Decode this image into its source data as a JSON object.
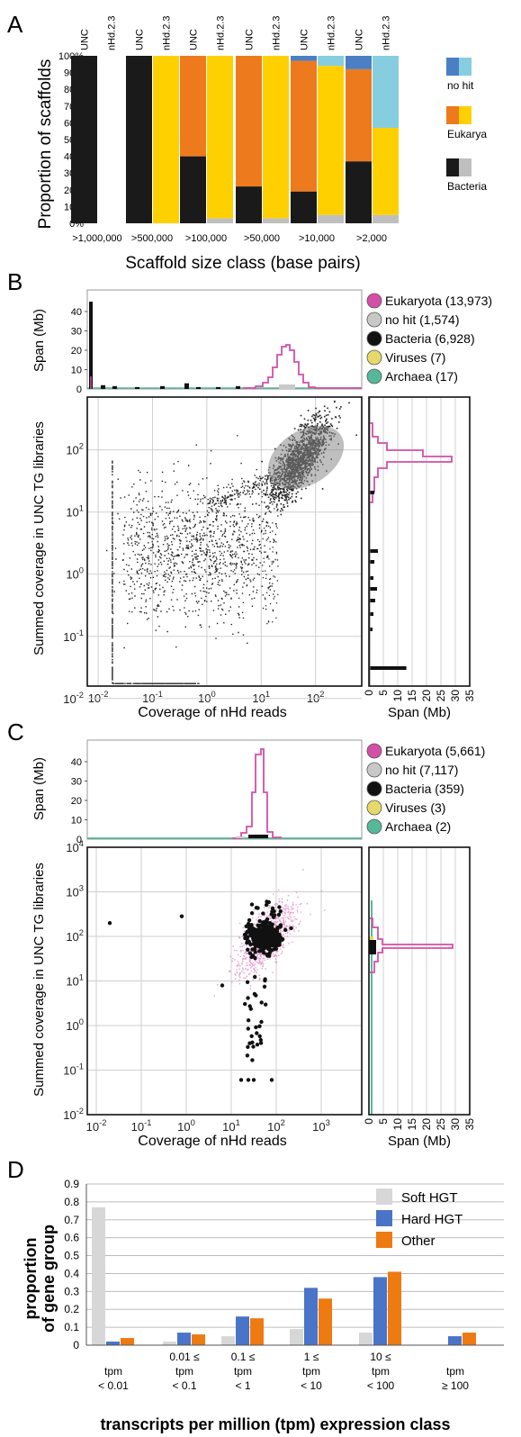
{
  "colors": {
    "unc_bacteria": "#1a1a1a",
    "nhd_bacteria": "#bfbfbf",
    "unc_eukarya": "#ee7a1e",
    "nhd_eukarya": "#ffd000",
    "unc_nohit": "#4a7fc4",
    "nhd_nohit": "#86cde0",
    "eukaryota": "#d44fa8",
    "nohit": "#c0c0c0",
    "bacteria": "#111111",
    "viruses": "#e6d96a",
    "archaea": "#56b89a",
    "soft_hgt": "#d7d7d7",
    "hard_hgt": "#4a74c7",
    "other": "#ee7a12"
  },
  "panelA": {
    "letter": "A",
    "ylabel": "Proportion of scaffolds",
    "xlabel": "Scaffold size class (base pairs)",
    "yticks": [
      "0%",
      "10%",
      "20%",
      "30%",
      "40%",
      "50%",
      "60%",
      "70%",
      "80%",
      "90%",
      "100%"
    ],
    "legend": [
      {
        "label": "no hit",
        "unc": "#4a7fc4",
        "nhd": "#86cde0"
      },
      {
        "label": "Eukarya",
        "unc": "#ee7a1e",
        "nhd": "#ffd000"
      },
      {
        "label": "Bacteria",
        "unc": "#1a1a1a",
        "nhd": "#bfbfbf"
      }
    ],
    "chart_data": {
      "type": "bar",
      "stacked": true,
      "categories": [
        ">1,000,000",
        ">500,000",
        ">100,000",
        ">50,000",
        ">10,000",
        ">2,000"
      ],
      "bar_labels": [
        "UNC",
        "nHd.2.3"
      ],
      "series": [
        {
          "assembly": "UNC",
          "bacteria": [
            100,
            100,
            40,
            22,
            19,
            37
          ],
          "eukarya": [
            0,
            0,
            60,
            78,
            78,
            55
          ],
          "nohit": [
            0,
            0,
            0,
            0,
            3,
            8
          ]
        },
        {
          "assembly": "nHd.2.3",
          "bacteria": [
            null,
            0,
            3,
            3,
            5,
            5
          ],
          "eukarya": [
            null,
            100,
            97,
            97,
            89,
            52
          ],
          "nohit": [
            null,
            0,
            0,
            0,
            6,
            43
          ]
        }
      ],
      "ylim": [
        0,
        100
      ]
    }
  },
  "panelB": {
    "letter": "B",
    "hist_ylabel": "Span (Mb)",
    "hist_yticks": [
      "0",
      "10",
      "20",
      "30",
      "40"
    ],
    "scatter_ylabel": "Summed coverage in UNC TG libraries",
    "scatter_xlabel": "Coverage of nHd reads",
    "side_xlabel": "Span (Mb)",
    "side_xticks": [
      "0",
      "5",
      "10",
      "15",
      "20",
      "25",
      "30",
      "35"
    ],
    "legend": [
      {
        "label": "Eukaryota (13,973)",
        "color": "#d44fa8"
      },
      {
        "label": "no hit (1,574)",
        "color": "#c8c8c8"
      },
      {
        "label": "Bacteria (6,928)",
        "color": "#111111"
      },
      {
        "label": "Viruses (7)",
        "color": "#e6d96a"
      },
      {
        "label": "Archaea (17)",
        "color": "#56b89a"
      }
    ],
    "x_ticks": [
      {
        "base": "10",
        "exp": "-2"
      },
      {
        "base": "10",
        "exp": "-1"
      },
      {
        "base": "10",
        "exp": "0"
      },
      {
        "base": "10",
        "exp": "1"
      },
      {
        "base": "10",
        "exp": "2"
      }
    ],
    "y_ticks": [
      {
        "base": "10",
        "exp": "-2"
      },
      {
        "base": "10",
        "exp": "-1"
      },
      {
        "base": "10",
        "exp": "0"
      },
      {
        "base": "10",
        "exp": "1"
      },
      {
        "base": "10",
        "exp": "2"
      }
    ],
    "chart_data": {
      "type": "scatter",
      "x_scale": "log",
      "y_scale": "log",
      "xlim": [
        0.01,
        700
      ],
      "ylim": [
        0.01,
        700
      ],
      "top_hist": {
        "type": "histogram",
        "bins_log_x": [
          -1.8,
          -1.0,
          0.0,
          0.6,
          1.0,
          1.4,
          1.7,
          2.0
        ],
        "eukaryota_peak": {
          "x": 50,
          "span_mb": 19
        },
        "bacteria_peak": {
          "x": 0.018,
          "span_mb": 45
        }
      },
      "side_hist": {
        "eukaryota_peak": {
          "y": 70,
          "span_mb": 32
        },
        "bacteria_bar": {
          "y": 0.02,
          "span_mb": 13
        }
      },
      "clusters": [
        {
          "name": "eukaryota",
          "x_center": 50,
          "y_center": 60
        },
        {
          "name": "bacteria",
          "x_center": 0.05,
          "y_center": 3
        }
      ]
    }
  },
  "panelC": {
    "letter": "C",
    "hist_ylabel": "Span (Mb)",
    "hist_yticks": [
      "0",
      "10",
      "20",
      "30",
      "40"
    ],
    "scatter_ylabel": "Summed coverage in UNC TG libraries",
    "scatter_xlabel": "Coverage of nHd reads",
    "side_xlabel": "Span (Mb)",
    "side_xticks": [
      "0",
      "5",
      "10",
      "15",
      "20",
      "25",
      "30",
      "35"
    ],
    "legend": [
      {
        "label": "Eukaryota (5,661)",
        "color": "#d44fa8"
      },
      {
        "label": "no hit (7,117)",
        "color": "#c8c8c8"
      },
      {
        "label": "Bacteria (359)",
        "color": "#111111"
      },
      {
        "label": "Viruses (3)",
        "color": "#e6d96a"
      },
      {
        "label": "Archaea (2)",
        "color": "#56b89a"
      }
    ],
    "x_ticks": [
      {
        "base": "10",
        "exp": "-2"
      },
      {
        "base": "10",
        "exp": "-1"
      },
      {
        "base": "10",
        "exp": "0"
      },
      {
        "base": "10",
        "exp": "1"
      },
      {
        "base": "10",
        "exp": "2"
      },
      {
        "base": "10",
        "exp": "3"
      }
    ],
    "y_ticks": [
      {
        "base": "10",
        "exp": "-2"
      },
      {
        "base": "10",
        "exp": "-1"
      },
      {
        "base": "10",
        "exp": "0"
      },
      {
        "base": "10",
        "exp": "1"
      },
      {
        "base": "10",
        "exp": "2"
      },
      {
        "base": "10",
        "exp": "3"
      },
      {
        "base": "10",
        "exp": "4"
      }
    ],
    "chart_data": {
      "type": "scatter",
      "x_scale": "log",
      "y_scale": "log",
      "xlim": [
        0.01,
        8000
      ],
      "ylim": [
        0.01,
        10000
      ],
      "top_hist": {
        "eukaryota_peak": {
          "x": 75,
          "span_mb": 41
        }
      },
      "side_hist": {
        "eukaryota_peak": {
          "y": 100,
          "span_mb": 31
        }
      },
      "clusters": [
        {
          "name": "bacteria",
          "x_center": 60,
          "y_center": 100
        }
      ]
    }
  },
  "panelD": {
    "letter": "D",
    "ylabel_lines": [
      "proportion",
      "of gene group"
    ],
    "xlabel": "transcripts per million (tpm) expression class",
    "yticks": [
      "0",
      "0.1",
      "0.2",
      "0.3",
      "0.4",
      "0.5",
      "0.6",
      "0.7",
      "0.8",
      "0.9"
    ],
    "legend": [
      {
        "label": "Soft HGT",
        "color": "#d7d7d7"
      },
      {
        "label": "Hard HGT",
        "color": "#4a74c7"
      },
      {
        "label": "Other",
        "color": "#ee7a12"
      }
    ],
    "category_lines": [
      [
        "tpm",
        "< 0.01"
      ],
      [
        "0.01 ≤",
        "tpm",
        "< 0.1"
      ],
      [
        "0.1 ≤",
        "tpm",
        "< 1"
      ],
      [
        "1 ≤",
        "tpm",
        "< 10"
      ],
      [
        "10 ≤",
        "tpm",
        "< 100"
      ],
      [
        "tpm",
        "≥ 100"
      ]
    ],
    "chart_data": {
      "type": "bar",
      "categories": [
        "tpm < 0.01",
        "0.01 ≤ tpm < 0.1",
        "0.1 ≤ tpm < 1",
        "1 ≤ tpm < 10",
        "10 ≤ tpm < 100",
        "tpm ≥ 100"
      ],
      "series": [
        {
          "name": "Soft HGT",
          "values": [
            0.77,
            0.02,
            0.05,
            0.09,
            0.07,
            0.0
          ]
        },
        {
          "name": "Hard HGT",
          "values": [
            0.02,
            0.07,
            0.16,
            0.32,
            0.38,
            0.05
          ]
        },
        {
          "name": "Other",
          "values": [
            0.04,
            0.06,
            0.15,
            0.26,
            0.41,
            0.07
          ]
        }
      ],
      "ylim": [
        0,
        0.9
      ]
    }
  }
}
